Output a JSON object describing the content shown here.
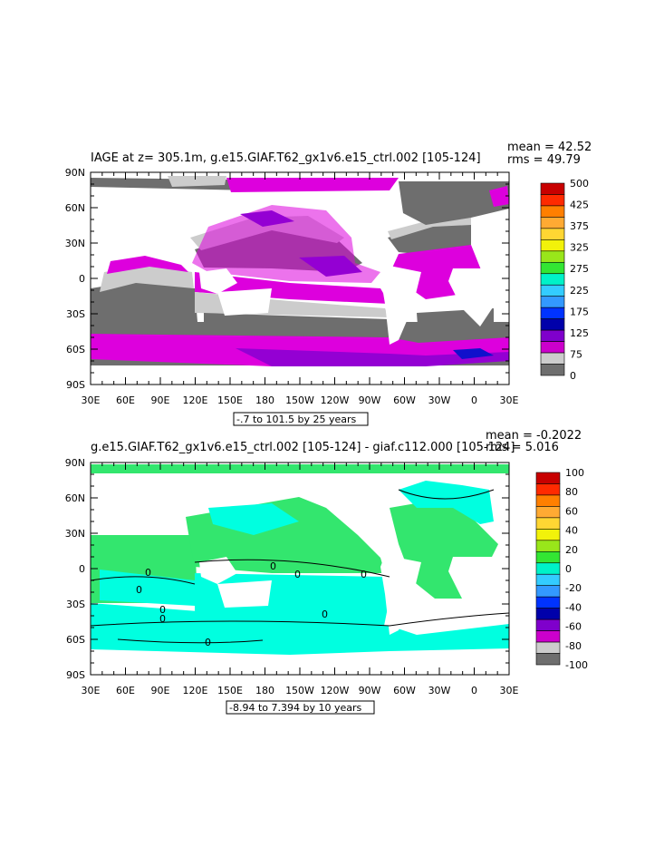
{
  "panels": [
    {
      "title": "IAGE at z= 305.1m, g.e15.GIAF.T62_gx1v6.e15_ctrl.002 [105-124]",
      "mean": "mean = 42.52",
      "rms": "rms = 49.79",
      "range_note": "-.7 to 101.5 by 25 years",
      "colorbar_labels": [
        "500",
        "425",
        "375",
        "325",
        "275",
        "225",
        "175",
        "125",
        "75",
        "0"
      ],
      "colorbar_colors": [
        "#c80000",
        "#ff2a00",
        "#ff7f00",
        "#ffaa33",
        "#ffd633",
        "#f2f20a",
        "#99e61a",
        "#33e633",
        "#00f2c8",
        "#33ccff",
        "#3399ff",
        "#0033ff",
        "#0000aa",
        "#7f00cc",
        "#cc00cc",
        "#cccccc",
        "#6e6e6e"
      ],
      "map_colors": {
        "land": "#ffffff",
        "low": "#6e6e6e",
        "light": "#cccccc",
        "magenta": "#dd00dd",
        "purple": "#9400d3",
        "blue": "#1010cc"
      }
    },
    {
      "title": "g.e15.GIAF.T62_gx1v6.e15_ctrl.002 [105-124] - giaf.c112.000 [105-124]",
      "mean": "mean = -0.2022",
      "rms": "rms = 5.016",
      "range_note": "-8.94 to 7.394 by 10 years",
      "colorbar_labels": [
        "100",
        "80",
        "60",
        "40",
        "20",
        "0",
        "-20",
        "-40",
        "-60",
        "-80",
        "-100"
      ],
      "colorbar_colors": [
        "#c80000",
        "#ff2a00",
        "#ff7f00",
        "#ffaa33",
        "#ffd633",
        "#f2f20a",
        "#99e61a",
        "#33e633",
        "#00f2c8",
        "#33ccff",
        "#3399ff",
        "#0033ff",
        "#0000aa",
        "#7f00cc",
        "#cc00cc",
        "#cccccc",
        "#6e6e6e"
      ],
      "map_colors": {
        "land": "#ffffff",
        "positive": "#33e66e",
        "negative": "#00ffe0"
      },
      "contour_labels": [
        "0",
        "0",
        "0",
        "0",
        "0",
        "0",
        "0",
        "0",
        "0"
      ]
    }
  ],
  "x_ticks": [
    "30E",
    "60E",
    "90E",
    "120E",
    "150E",
    "180",
    "150W",
    "120W",
    "90W",
    "60W",
    "30W",
    "0",
    "30E"
  ],
  "y_ticks": [
    "90N",
    "60N",
    "30N",
    "0",
    "30S",
    "60S",
    "90S"
  ]
}
